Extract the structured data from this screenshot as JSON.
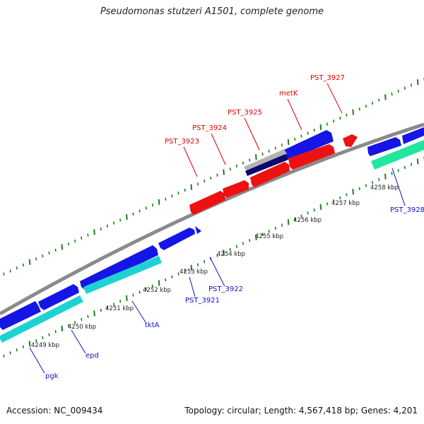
{
  "title": "Pseudomonas stutzeri A1501, complete genome",
  "footer": {
    "accession": "Accession: NC_009434",
    "summary": "Topology: circular; Length: 4,567,418 bp; Genes: 4,201"
  },
  "colors": {
    "backbone": "#8a8a8a",
    "tick": "#1e7d1e",
    "gene_forward": "#1515e6",
    "gene_reverse": "#ee1111",
    "cds_cyan": "#1ed2d2",
    "cds_green": "#22e6a0",
    "grey_feature": "#b4b4b4",
    "navy_feature": "#0a0a6e",
    "label_red": "#e00000",
    "label_blue": "#1010c8"
  },
  "scale_labels": [
    "4249 kbp",
    "4250 kbp",
    "4251 kbp",
    "4252 kbp",
    "4253 kbp",
    "4254 kbp",
    "4255 kbp",
    "4256 kbp",
    "4257 kbp",
    "4258 kbp"
  ],
  "gene_labels_top": [
    "PST_3923",
    "PST_3924",
    "PST_3925",
    "metK",
    "PST_3927"
  ],
  "gene_labels_bottom": [
    "pgk",
    "epd",
    "tktA",
    "PST_3921",
    "PST_3922",
    "PST_3928"
  ]
}
